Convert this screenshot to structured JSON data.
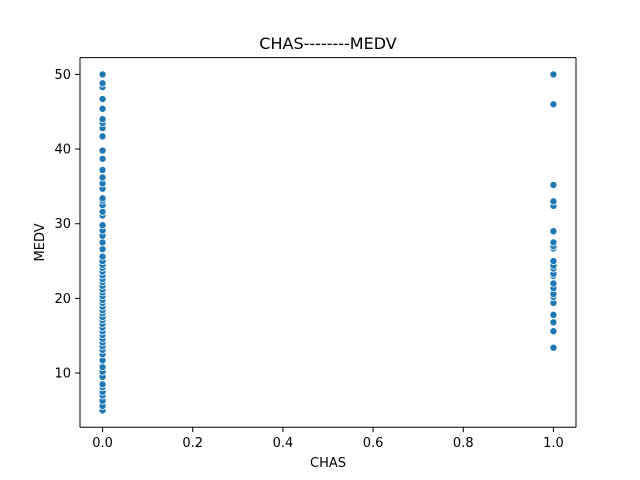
{
  "chart_data": {
    "type": "scatter",
    "title": "CHAS--------MEDV",
    "xlabel": "CHAS",
    "ylabel": "MEDV",
    "xlim": [
      -0.05,
      1.05
    ],
    "ylim": [
      2.75,
      52.25
    ],
    "x_ticks": [
      0.0,
      0.2,
      0.4,
      0.6,
      0.8,
      1.0
    ],
    "x_tick_labels": [
      "0.0",
      "0.2",
      "0.4",
      "0.6",
      "0.8",
      "1.0"
    ],
    "y_ticks": [
      10,
      20,
      30,
      40,
      50
    ],
    "y_tick_labels": [
      "10",
      "20",
      "30",
      "40",
      "50"
    ],
    "grid": false,
    "marker_color": "#1f77b4",
    "series": [
      {
        "x": 0,
        "y": [
          5.0,
          5.6,
          6.3,
          7.0,
          7.5,
          8.1,
          8.5,
          9.5,
          10.2,
          10.8,
          11.7,
          12.5,
          13.1,
          13.6,
          14.1,
          14.6,
          15.1,
          15.6,
          16.1,
          16.6,
          17.1,
          17.5,
          18.0,
          18.4,
          18.9,
          19.4,
          19.8,
          20.3,
          20.8,
          21.2,
          21.7,
          22.2,
          22.6,
          23.1,
          23.6,
          24.1,
          24.5,
          25.0,
          25.6,
          26.6,
          27.5,
          28.4,
          29.1,
          29.8,
          31.1,
          31.6,
          32.5,
          33.1,
          33.4,
          34.7,
          35.4,
          36.2,
          37.2,
          38.7,
          39.8,
          41.7,
          42.8,
          43.5,
          44.0,
          45.4,
          46.7,
          48.3,
          48.8,
          50.0
        ]
      },
      {
        "x": 1,
        "y": [
          13.4,
          15.6,
          16.8,
          17.8,
          19.4,
          20.2,
          20.6,
          21.4,
          22.0,
          23.0,
          23.3,
          24.0,
          24.4,
          25.0,
          26.7,
          27.0,
          27.5,
          29.0,
          32.4,
          33.0,
          35.2,
          46.0,
          50.0
        ]
      }
    ]
  }
}
